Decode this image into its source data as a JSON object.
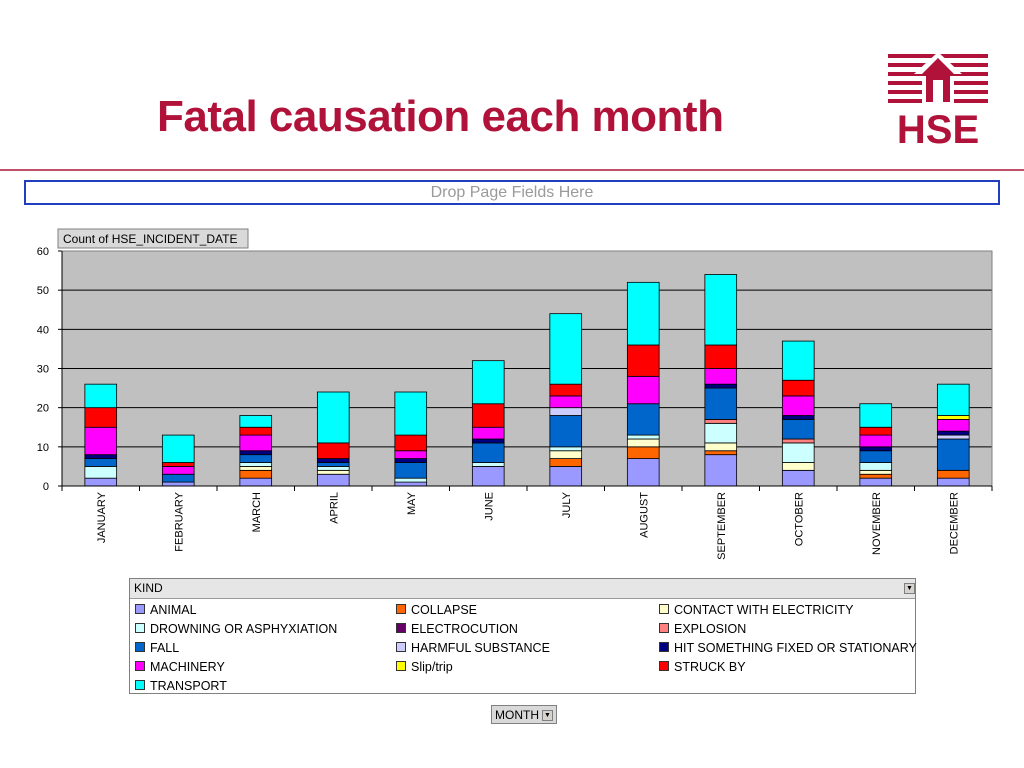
{
  "slide": {
    "title": "Fatal causation each month",
    "logo_text": "HSE",
    "drop_zone_label": "Drop Page Fields Here"
  },
  "colors": {
    "title": "#b0123a",
    "plot_background": "#c0c0c0",
    "logo": "#b0123a"
  },
  "chart_data": {
    "type": "bar",
    "stacked": true,
    "measure_label": "Count of HSE_INCIDENT_DATE",
    "ylim": [
      0,
      60
    ],
    "yticks": [
      0,
      10,
      20,
      30,
      40,
      50,
      60
    ],
    "grid": true,
    "legend_title": "KIND",
    "legend_position": "bottom",
    "category_field": "MONTH",
    "categories": [
      "JANUARY",
      "FEBRUARY",
      "MARCH",
      "APRIL",
      "MAY",
      "JUNE",
      "JULY",
      "AUGUST",
      "SEPTEMBER",
      "OCTOBER",
      "NOVEMBER",
      "DECEMBER"
    ],
    "series": [
      {
        "name": "ANIMAL",
        "color": "#9999ff",
        "values": [
          2,
          1,
          2,
          3,
          1,
          5,
          5,
          7,
          8,
          4,
          2,
          2
        ]
      },
      {
        "name": "COLLAPSE",
        "color": "#ff6600",
        "values": [
          0,
          0,
          2,
          0,
          0,
          0,
          2,
          3,
          1,
          0,
          1,
          2
        ]
      },
      {
        "name": "CONTACT WITH ELECTRICITY",
        "color": "#ffffcc",
        "values": [
          0,
          0,
          1,
          1,
          0,
          0,
          2,
          2,
          2,
          2,
          1,
          0
        ]
      },
      {
        "name": "DROWNING OR ASPHYXIATION",
        "color": "#ccffff",
        "values": [
          3,
          0,
          1,
          1,
          1,
          1,
          1,
          1,
          5,
          5,
          2,
          0
        ]
      },
      {
        "name": "ELECTROCUTION",
        "color": "#660066",
        "values": [
          0,
          0,
          0,
          0,
          0,
          0,
          0,
          0,
          0,
          0,
          0,
          0
        ]
      },
      {
        "name": "EXPLOSION",
        "color": "#ff8080",
        "values": [
          0,
          0,
          0,
          0,
          0,
          0,
          0,
          0,
          1,
          1,
          0,
          0
        ]
      },
      {
        "name": "FALL",
        "color": "#0066cc",
        "values": [
          2,
          2,
          2,
          1,
          4,
          5,
          8,
          8,
          8,
          5,
          3,
          8
        ]
      },
      {
        "name": "HARMFUL SUBSTANCE",
        "color": "#ccccff",
        "values": [
          0,
          0,
          0,
          0,
          0,
          0,
          2,
          0,
          0,
          0,
          0,
          1
        ]
      },
      {
        "name": "HIT SOMETHING FIXED OR STATIONARY",
        "color": "#000080",
        "values": [
          1,
          0,
          1,
          1,
          1,
          1,
          0,
          0,
          1,
          1,
          1,
          1
        ]
      },
      {
        "name": "MACHINERY",
        "color": "#ff00ff",
        "values": [
          7,
          2,
          4,
          0,
          2,
          3,
          3,
          7,
          4,
          5,
          3,
          3
        ]
      },
      {
        "name": "Slip/trip",
        "color": "#ffff00",
        "values": [
          0,
          0,
          0,
          0,
          0,
          0,
          0,
          0,
          0,
          0,
          0,
          1
        ]
      },
      {
        "name": "STRUCK BY",
        "color": "#ff0000",
        "values": [
          5,
          1,
          2,
          4,
          4,
          6,
          3,
          8,
          6,
          4,
          2,
          0
        ]
      },
      {
        "name": "TRANSPORT",
        "color": "#00ffff",
        "values": [
          6,
          7,
          3,
          13,
          11,
          11,
          18,
          16,
          18,
          10,
          6,
          8
        ]
      }
    ]
  },
  "month_button": {
    "label": "MONTH"
  }
}
